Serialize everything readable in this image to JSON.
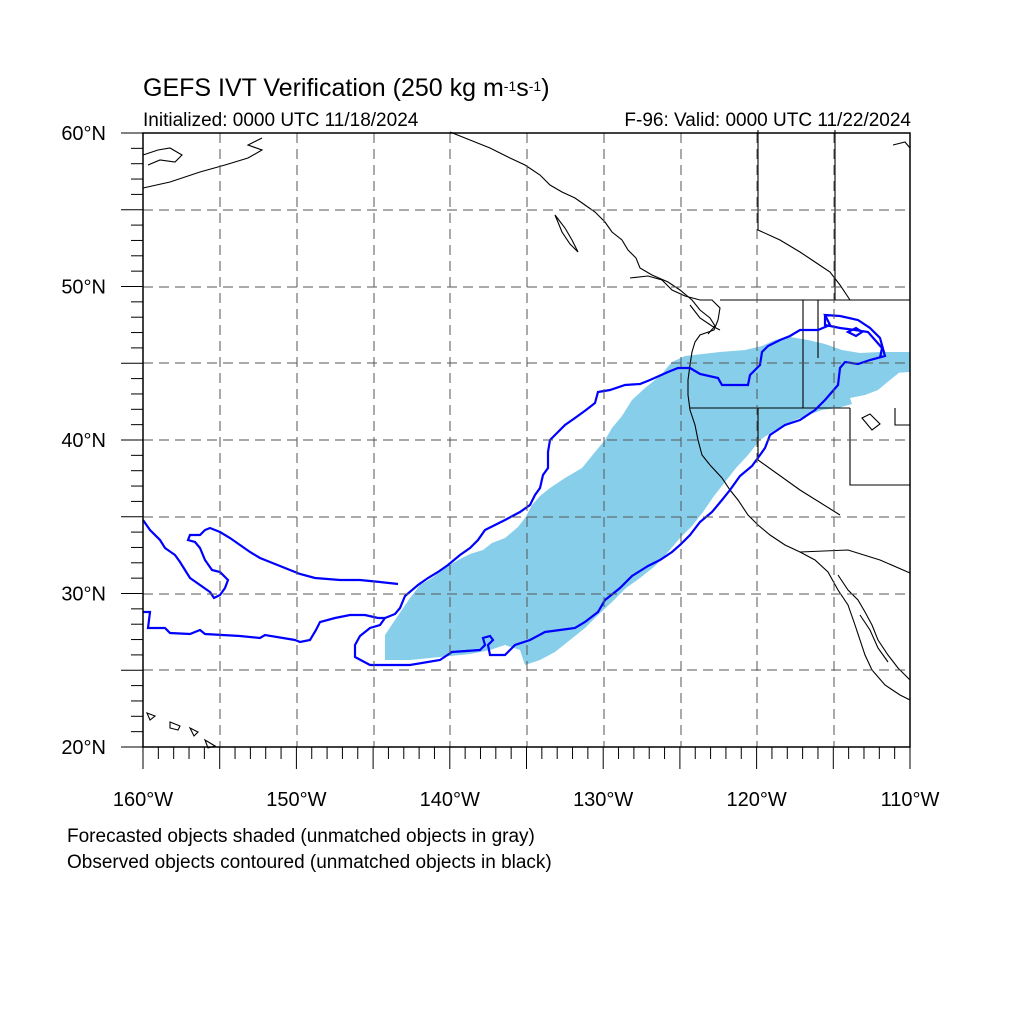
{
  "title": {
    "prefix": "GEFS IVT Verification (250 kg m",
    "exp1": "-1",
    "mid": "s",
    "exp2": "-1",
    "suffix": ")"
  },
  "initialized": "Initialized: 0000 UTC 11/18/2024",
  "valid": "F-96: Valid: 0000 UTC 11/22/2024",
  "footer": {
    "line1": "Forecasted objects shaded (unmatched objects in gray)",
    "line2": "Observed objects contoured (unmatched objects in black)"
  },
  "map": {
    "lon_range": [
      -160,
      -110
    ],
    "lat_range": [
      20,
      60
    ],
    "lon_ticks": [
      {
        "value": -160,
        "label": "160°W"
      },
      {
        "value": -150,
        "label": "150°W"
      },
      {
        "value": -140,
        "label": "140°W"
      },
      {
        "value": -130,
        "label": "130°W"
      },
      {
        "value": -120,
        "label": "120°W"
      },
      {
        "value": -110,
        "label": "110°W"
      }
    ],
    "lat_ticks": [
      {
        "value": 60,
        "label": "60°N"
      },
      {
        "value": 50,
        "label": "50°N"
      },
      {
        "value": 40,
        "label": "40°N"
      },
      {
        "value": 30,
        "label": "30°N"
      },
      {
        "value": 20,
        "label": "20°N"
      }
    ],
    "grid": "dashed every 5 degrees",
    "colors": {
      "forecast_fill": "#87ceeb",
      "observed_contour": "#0000ff",
      "coastline": "#000000",
      "grid": "#555555"
    }
  }
}
